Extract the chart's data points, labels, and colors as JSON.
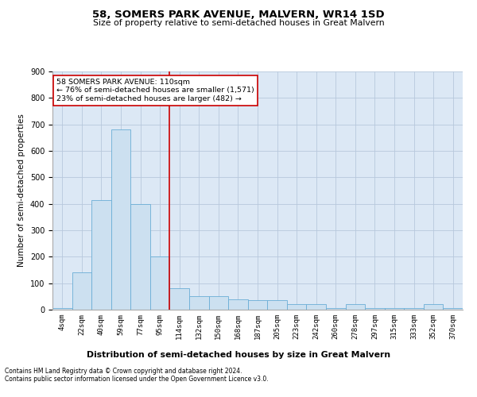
{
  "title": "58, SOMERS PARK AVENUE, MALVERN, WR14 1SD",
  "subtitle": "Size of property relative to semi-detached houses in Great Malvern",
  "xlabel": "Distribution of semi-detached houses by size in Great Malvern",
  "ylabel": "Number of semi-detached properties",
  "annotation_line1": "58 SOMERS PARK AVENUE: 110sqm",
  "annotation_line2": "← 76% of semi-detached houses are smaller (1,571)",
  "annotation_line3": "23% of semi-detached houses are larger (482) →",
  "footnote1": "Contains HM Land Registry data © Crown copyright and database right 2024.",
  "footnote2": "Contains public sector information licensed under the Open Government Licence v3.0.",
  "bin_labels": [
    "4sqm",
    "22sqm",
    "40sqm",
    "59sqm",
    "77sqm",
    "95sqm",
    "114sqm",
    "132sqm",
    "150sqm",
    "168sqm",
    "187sqm",
    "205sqm",
    "223sqm",
    "242sqm",
    "260sqm",
    "278sqm",
    "297sqm",
    "315sqm",
    "333sqm",
    "352sqm",
    "370sqm"
  ],
  "bar_values": [
    5,
    140,
    415,
    680,
    400,
    200,
    80,
    50,
    50,
    40,
    35,
    35,
    20,
    20,
    5,
    20,
    5,
    5,
    5,
    20,
    5
  ],
  "bar_color": "#cce0f0",
  "bar_edge_color": "#6aaed6",
  "vline_color": "#cc0000",
  "vline_x": 5.5,
  "ylim": [
    0,
    900
  ],
  "yticks": [
    0,
    100,
    200,
    300,
    400,
    500,
    600,
    700,
    800,
    900
  ],
  "grid_color": "#b8c8dc",
  "background_color": "#dce8f5"
}
